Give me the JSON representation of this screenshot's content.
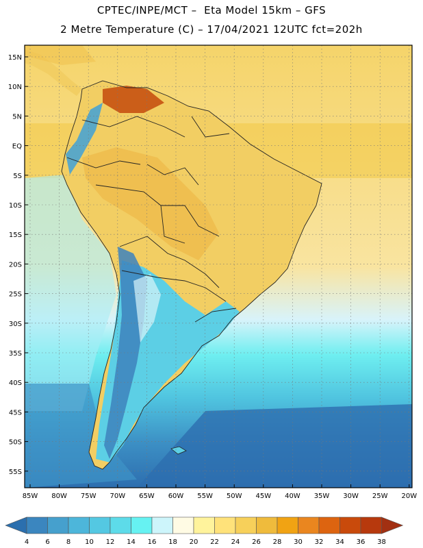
{
  "header": {
    "line1": "CPTEC/INPE/MCT –  Eta Model 15km – GFS",
    "line2": "2 Metre Temperature (C) – 17/04/2021 12UTC fct=202h"
  },
  "axes": {
    "lat_labels": [
      "15N",
      "10N",
      "5N",
      "EQ",
      "5S",
      "10S",
      "15S",
      "20S",
      "25S",
      "30S",
      "35S",
      "40S",
      "45S",
      "50S",
      "55S"
    ],
    "lon_labels": [
      "85W",
      "80W",
      "75W",
      "70W",
      "65W",
      "60W",
      "55W",
      "50W",
      "45W",
      "40W",
      "35W",
      "30W",
      "25W",
      "20W"
    ]
  },
  "colorbar": {
    "ticks": [
      "4",
      "6",
      "8",
      "10",
      "12",
      "14",
      "16",
      "18",
      "20",
      "22",
      "24",
      "26",
      "28",
      "30",
      "32",
      "34",
      "36",
      "38"
    ],
    "colors": [
      "#2b6fae",
      "#3b86bf",
      "#46a0cd",
      "#4db6da",
      "#54c8e2",
      "#5ddbe9",
      "#66f2f2",
      "#cdf5fb",
      "#fffbe4",
      "#fff39c",
      "#ffe27a",
      "#f7d05a",
      "#efbb3c",
      "#f1a313",
      "#ea861f",
      "#dd6410",
      "#c94a0b",
      "#b7390d",
      "#a23012"
    ]
  }
}
